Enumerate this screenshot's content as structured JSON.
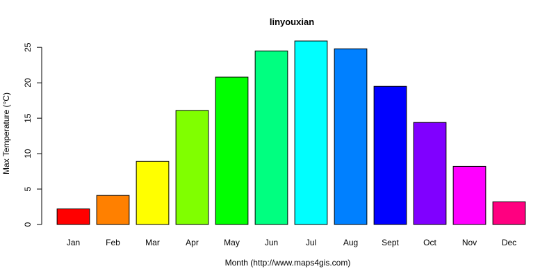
{
  "chart_data": {
    "type": "bar",
    "title": "linyouxian",
    "xlabel": "Month (http://www.maps4gis.com)",
    "ylabel": "Max Temperature (°C)",
    "categories": [
      "Jan",
      "Feb",
      "Mar",
      "Apr",
      "May",
      "Jun",
      "Jul",
      "Aug",
      "Sept",
      "Oct",
      "Nov",
      "Dec"
    ],
    "values": [
      2.2,
      4.1,
      8.9,
      16.1,
      20.8,
      24.5,
      25.9,
      24.8,
      19.5,
      14.4,
      8.2,
      3.2
    ],
    "colors": [
      "#ff0000",
      "#ff8000",
      "#ffff00",
      "#80ff00",
      "#00ff00",
      "#00ff80",
      "#00ffff",
      "#0080ff",
      "#0000ff",
      "#8000ff",
      "#ff00ff",
      "#ff0080"
    ],
    "yticks": [
      0,
      5,
      10,
      15,
      20,
      25
    ],
    "ylim": [
      0,
      25.9
    ],
    "grid": false,
    "legend": "none"
  }
}
